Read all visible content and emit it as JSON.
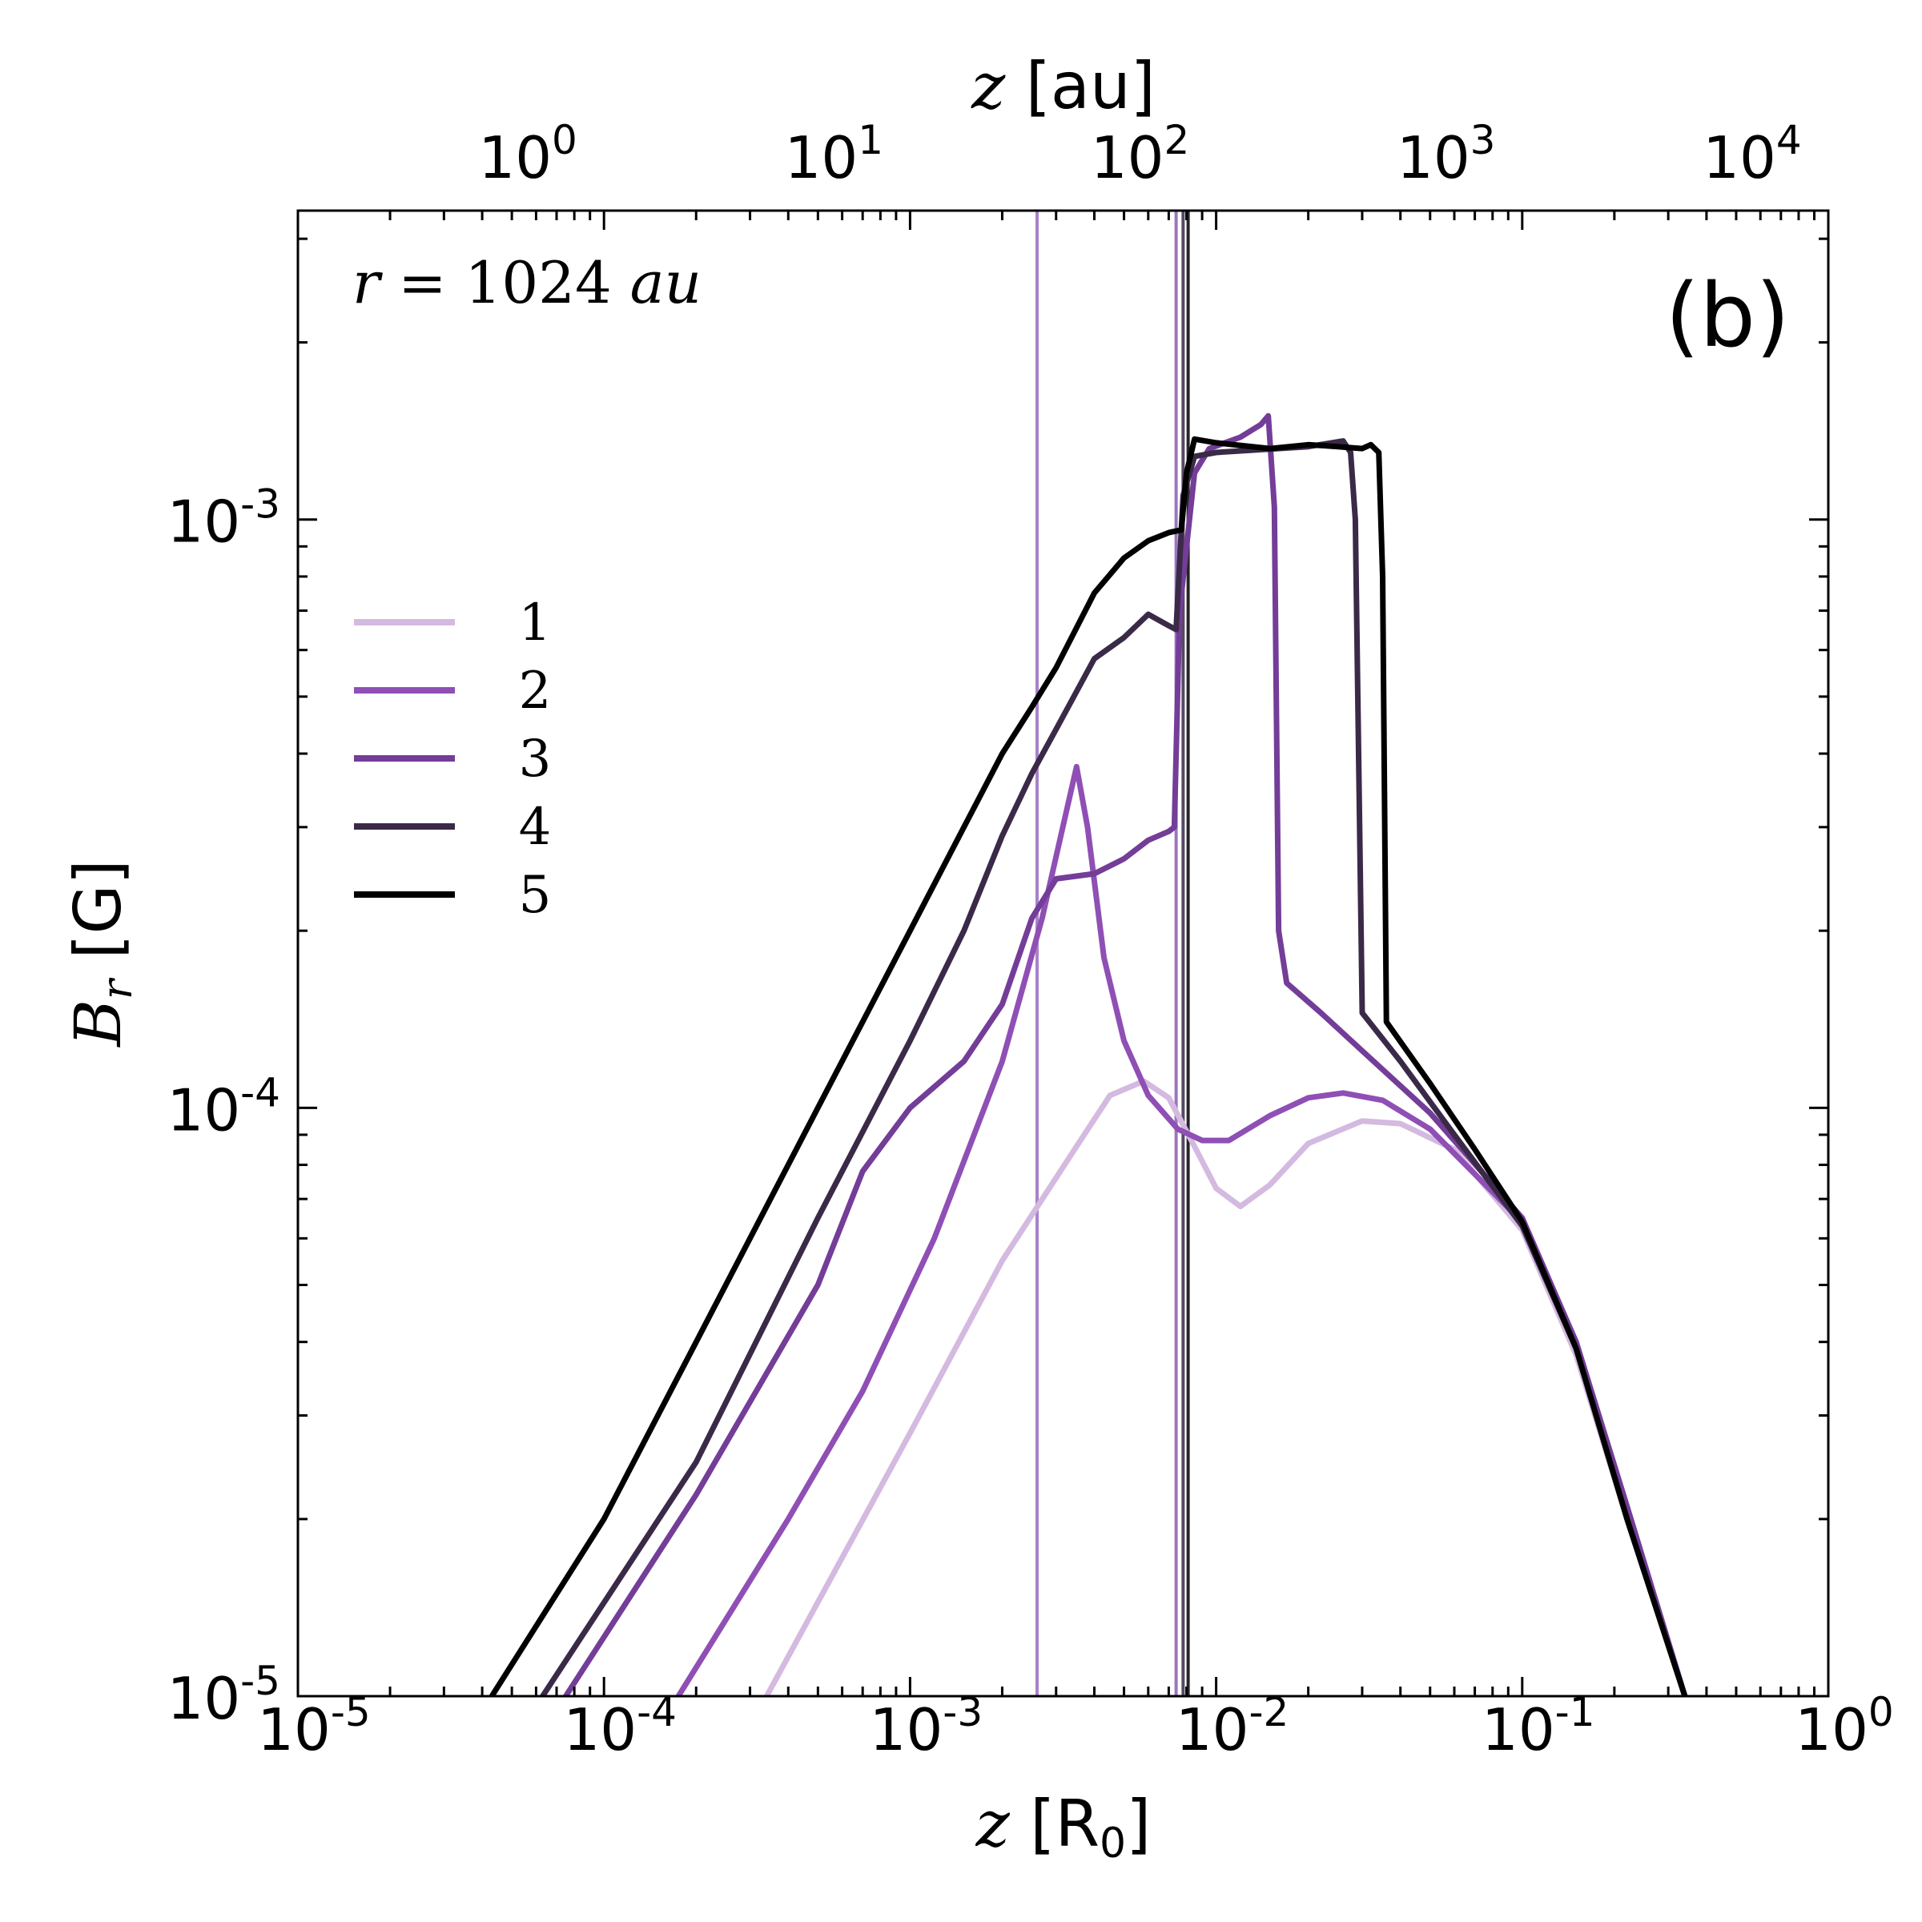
{
  "chart_data": {
    "type": "line",
    "scale": "log-log",
    "panel_label": "(b)",
    "annotation": "r = 1024 au",
    "annotation_parts": {
      "var": "r",
      "eq": " = 1024 ",
      "unit": "au"
    },
    "xlabel": {
      "var": "z",
      "unit": "[R",
      "sub": "0",
      "close": "]"
    },
    "ylabel": {
      "var": "B",
      "sub": "r",
      "unit": " [G]"
    },
    "top_xlabel": {
      "var": "z",
      "unit": " [au]"
    },
    "xlim_exp": [
      -5,
      0
    ],
    "ylim_exp": [
      -5,
      -2.475
    ],
    "x_ticks": [
      {
        "base": "10",
        "exp": "-5",
        "value": 1e-05
      },
      {
        "base": "10",
        "exp": "-4",
        "value": 0.0001
      },
      {
        "base": "10",
        "exp": "-3",
        "value": 0.001
      },
      {
        "base": "10",
        "exp": "-2",
        "value": 0.01
      },
      {
        "base": "10",
        "exp": "-1",
        "value": 0.1
      },
      {
        "base": "10",
        "exp": "0",
        "value": 1
      }
    ],
    "y_ticks": [
      {
        "base": "10",
        "exp": "-5",
        "value": 1e-05
      },
      {
        "base": "10",
        "exp": "-4",
        "value": 0.0001
      },
      {
        "base": "10",
        "exp": "-3",
        "value": 0.001
      }
    ],
    "top_ticks": [
      {
        "base": "10",
        "exp": "0",
        "value_Rz": 5e-05
      },
      {
        "base": "10",
        "exp": "1",
        "value_Rz": 0.0005
      },
      {
        "base": "10",
        "exp": "2",
        "value_Rz": 0.005
      },
      {
        "base": "10",
        "exp": "3",
        "value_Rz": 0.05
      },
      {
        "base": "10",
        "exp": "4",
        "value_Rz": 0.5
      }
    ],
    "vlines": [
      {
        "x": 0.0026,
        "color": "#9a6dc0"
      },
      {
        "x": 0.0074,
        "color": "#8a5fb4"
      },
      {
        "x": 0.0078,
        "color": "#3a2a48"
      },
      {
        "x": 0.0081,
        "color": "#000000"
      }
    ],
    "series": [
      {
        "name": "1",
        "color": "#d4b9e0",
        "points": [
          [
            0.00034,
            1e-05
          ],
          [
            0.001,
            2.8e-05
          ],
          [
            0.002,
            5.5e-05
          ],
          [
            0.0035,
            8.6e-05
          ],
          [
            0.0045,
            0.000105
          ],
          [
            0.0058,
            0.000111
          ],
          [
            0.007,
            0.000104
          ],
          [
            0.0085,
            8.6e-05
          ],
          [
            0.01,
            7.3e-05
          ],
          [
            0.012,
            6.8e-05
          ],
          [
            0.015,
            7.4e-05
          ],
          [
            0.02,
            8.7e-05
          ],
          [
            0.03,
            9.5e-05
          ],
          [
            0.04,
            9.4e-05
          ],
          [
            0.06,
            8.5e-05
          ],
          [
            0.1,
            6.2e-05
          ],
          [
            0.15,
            3.8e-05
          ],
          [
            0.22,
            2e-05
          ],
          [
            0.34,
            1e-05
          ]
        ]
      },
      {
        "name": "2",
        "color": "#8f4fb5",
        "points": [
          [
            0.000175,
            1e-05
          ],
          [
            0.0004,
            2e-05
          ],
          [
            0.0007,
            3.3e-05
          ],
          [
            0.0012,
            6e-05
          ],
          [
            0.002,
            0.00012
          ],
          [
            0.0027,
            0.00021
          ],
          [
            0.0032,
            0.00031
          ],
          [
            0.0035,
            0.00038
          ],
          [
            0.0038,
            0.0003
          ],
          [
            0.0043,
            0.00018
          ],
          [
            0.005,
            0.00013
          ],
          [
            0.006,
            0.000105
          ],
          [
            0.0075,
            9.2e-05
          ],
          [
            0.009,
            8.8e-05
          ],
          [
            0.011,
            8.8e-05
          ],
          [
            0.015,
            9.7e-05
          ],
          [
            0.02,
            0.000104
          ],
          [
            0.026,
            0.000106
          ],
          [
            0.035,
            0.000103
          ],
          [
            0.05,
            9.2e-05
          ],
          [
            0.1,
            6.4e-05
          ],
          [
            0.15,
            4e-05
          ],
          [
            0.22,
            2.1e-05
          ],
          [
            0.34,
            1e-05
          ]
        ]
      },
      {
        "name": "3",
        "color": "#733d98",
        "points": [
          [
            7.5e-05,
            1e-05
          ],
          [
            0.0002,
            2.2e-05
          ],
          [
            0.0005,
            5e-05
          ],
          [
            0.0007,
            7.8e-05
          ],
          [
            0.001,
            0.0001
          ],
          [
            0.0015,
            0.00012
          ],
          [
            0.002,
            0.00015
          ],
          [
            0.0025,
            0.00021
          ],
          [
            0.003,
            0.000245
          ],
          [
            0.004,
            0.00025
          ],
          [
            0.005,
            0.000265
          ],
          [
            0.006,
            0.000285
          ],
          [
            0.007,
            0.000295
          ],
          [
            0.0073,
            0.0003
          ],
          [
            0.0076,
            0.0007
          ],
          [
            0.0085,
            0.0012
          ],
          [
            0.0095,
            0.00132
          ],
          [
            0.012,
            0.00138
          ],
          [
            0.014,
            0.00145
          ],
          [
            0.0148,
            0.0015
          ],
          [
            0.0155,
            0.00105
          ],
          [
            0.016,
            0.0002
          ],
          [
            0.017,
            0.000163
          ],
          [
            0.022,
            0.000145
          ],
          [
            0.03,
            0.000125
          ],
          [
            0.05,
            9.8e-05
          ],
          [
            0.1,
            6.5e-05
          ],
          [
            0.15,
            4e-05
          ],
          [
            0.22,
            2.1e-05
          ],
          [
            0.34,
            1e-05
          ]
        ]
      },
      {
        "name": "4",
        "color": "#3a2a48",
        "points": [
          [
            6.3e-05,
            1e-05
          ],
          [
            0.0002,
            2.5e-05
          ],
          [
            0.0005,
            6.5e-05
          ],
          [
            0.001,
            0.00013
          ],
          [
            0.0015,
            0.0002
          ],
          [
            0.002,
            0.00029
          ],
          [
            0.0025,
            0.00037
          ],
          [
            0.003,
            0.00044
          ],
          [
            0.004,
            0.00058
          ],
          [
            0.005,
            0.00063
          ],
          [
            0.006,
            0.00069
          ],
          [
            0.007,
            0.00066
          ],
          [
            0.0074,
            0.00065
          ],
          [
            0.0078,
            0.0011
          ],
          [
            0.0085,
            0.00128
          ],
          [
            0.01,
            0.0013
          ],
          [
            0.02,
            0.00133
          ],
          [
            0.026,
            0.00136
          ],
          [
            0.0275,
            0.0013
          ],
          [
            0.0285,
            0.001
          ],
          [
            0.03,
            0.000145
          ],
          [
            0.04,
            0.00012
          ],
          [
            0.06,
            9e-05
          ],
          [
            0.1,
            6.3e-05
          ],
          [
            0.15,
            3.9e-05
          ],
          [
            0.22,
            2e-05
          ],
          [
            0.34,
            1e-05
          ]
        ]
      },
      {
        "name": "5",
        "color": "#000000",
        "points": [
          [
            4.3e-05,
            1e-05
          ],
          [
            0.0001,
            2e-05
          ],
          [
            0.0002,
            4e-05
          ],
          [
            0.0005,
            0.0001
          ],
          [
            0.001,
            0.0002
          ],
          [
            0.0015,
            0.0003
          ],
          [
            0.002,
            0.0004
          ],
          [
            0.0025,
            0.00048
          ],
          [
            0.003,
            0.00056
          ],
          [
            0.004,
            0.00075
          ],
          [
            0.005,
            0.00086
          ],
          [
            0.006,
            0.00092
          ],
          [
            0.007,
            0.00095
          ],
          [
            0.0077,
            0.00096
          ],
          [
            0.008,
            0.0012
          ],
          [
            0.0085,
            0.00137
          ],
          [
            0.01,
            0.00135
          ],
          [
            0.015,
            0.00132
          ],
          [
            0.02,
            0.00134
          ],
          [
            0.025,
            0.00133
          ],
          [
            0.03,
            0.00132
          ],
          [
            0.032,
            0.00134
          ],
          [
            0.034,
            0.0013
          ],
          [
            0.035,
            0.0008
          ],
          [
            0.036,
            0.00014
          ],
          [
            0.05,
            0.00011
          ],
          [
            0.07,
            8.5e-05
          ],
          [
            0.1,
            6.4e-05
          ],
          [
            0.15,
            3.9e-05
          ],
          [
            0.22,
            2e-05
          ],
          [
            0.34,
            1e-05
          ]
        ]
      }
    ]
  }
}
